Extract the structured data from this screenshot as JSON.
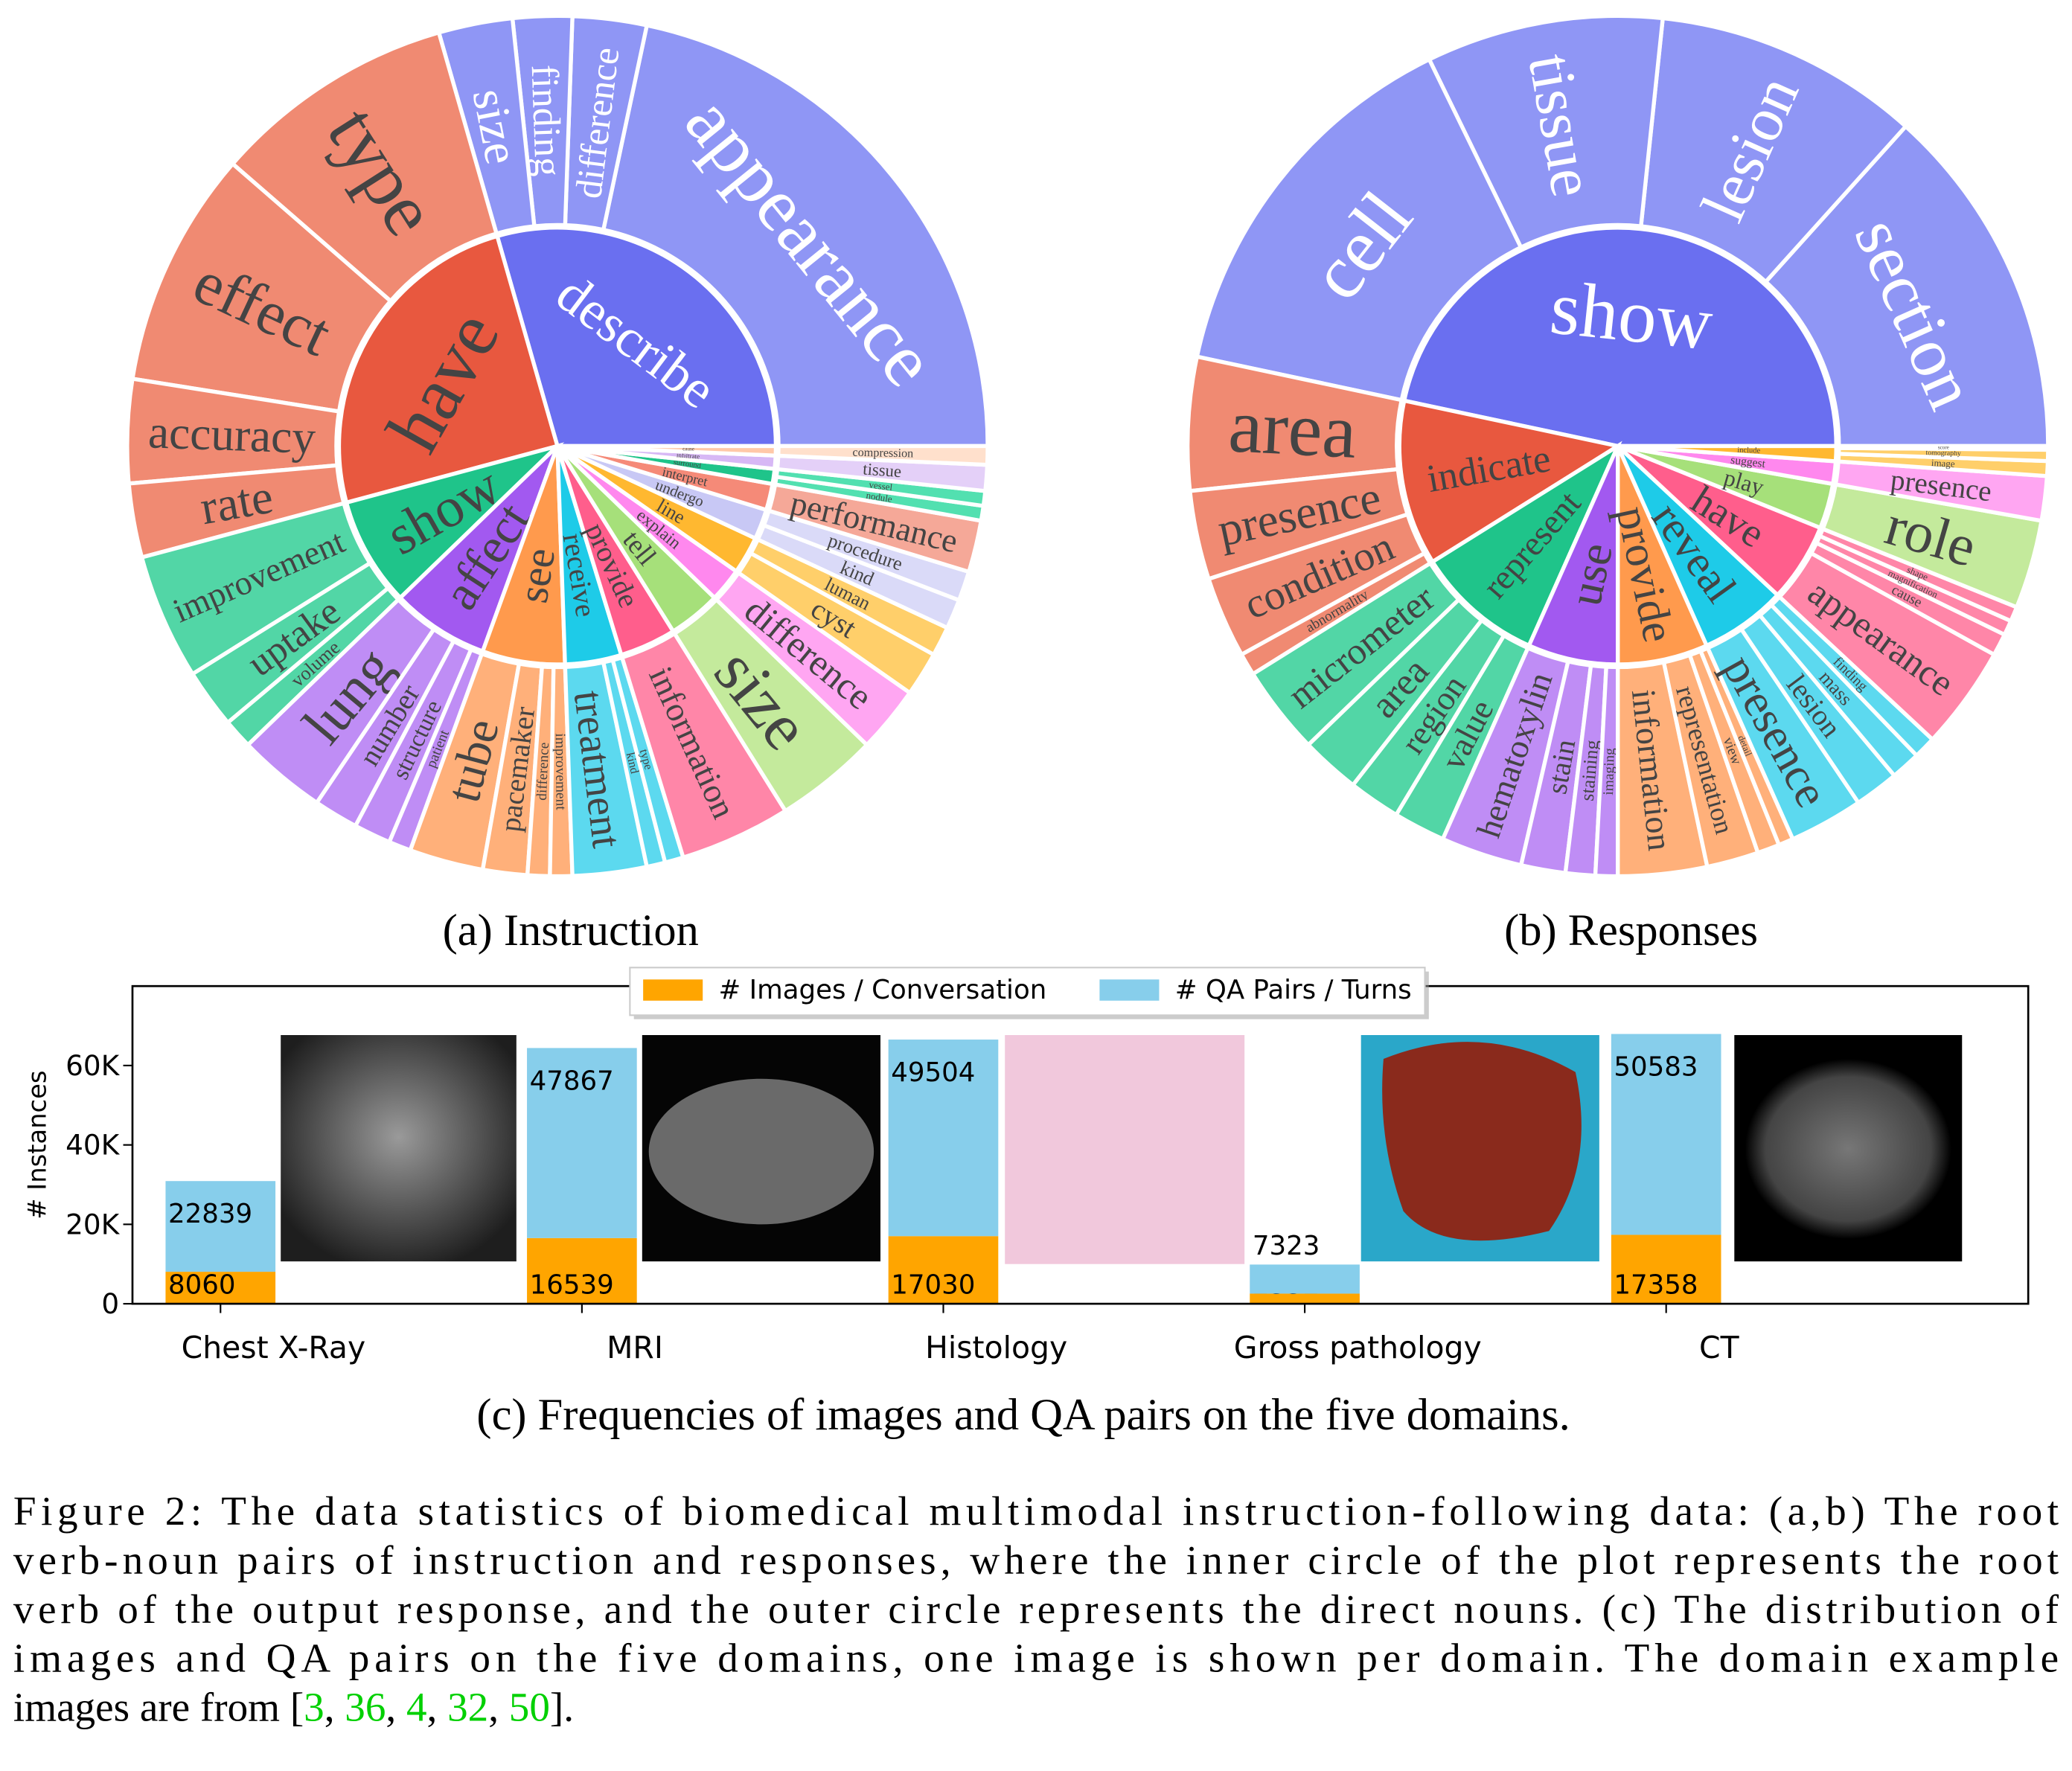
{
  "chart_data": [
    {
      "type": "sunburst",
      "subtitle": "(a) Instruction",
      "groups": [
        {
          "name": "describe",
          "color": "#6a6ff0",
          "outer_color": "#8f96f5",
          "children": [
            {
              "name": "appearance",
              "value": 78
            },
            {
              "name": "difference",
              "value": 10
            },
            {
              "name": "finding",
              "value": 8
            },
            {
              "name": "size",
              "value": 10
            }
          ]
        },
        {
          "name": "have",
          "color": "#e8583f",
          "outer_color": "#f08a72",
          "children": [
            {
              "name": "type",
              "value": 33
            },
            {
              "name": "effect",
              "value": 32
            },
            {
              "name": "accuracy",
              "value": 14
            },
            {
              "name": "rate",
              "value": 10
            }
          ]
        },
        {
          "name": "show",
          "color": "#1fc48a",
          "outer_color": "#52d6a6",
          "children": [
            {
              "name": "improvement",
              "value": 17
            },
            {
              "name": "uptake",
              "value": 8
            },
            {
              "name": "volume",
              "value": 4
            }
          ]
        },
        {
          "name": "affect",
          "color": "#a259f0",
          "outer_color": "#bf8df5",
          "children": [
            {
              "name": "lung",
              "value": 12
            },
            {
              "name": "number",
              "value": 6
            },
            {
              "name": "structure",
              "value": 5
            },
            {
              "name": "patient",
              "value": 3
            }
          ]
        },
        {
          "name": "see",
          "color": "#ff9a4d",
          "outer_color": "#ffb07a",
          "children": [
            {
              "name": "tube",
              "value": 10
            },
            {
              "name": "pacemaker",
              "value": 6
            },
            {
              "name": "difference",
              "value": 3
            },
            {
              "name": "improvement",
              "value": 3
            }
          ]
        },
        {
          "name": "receive",
          "color": "#1ecbe8",
          "outer_color": "#5cd9ef",
          "children": [
            {
              "name": "treatment",
              "value": 10
            },
            {
              "name": "kind",
              "value": 2.5
            },
            {
              "name": "type",
              "value": 2.5
            }
          ]
        },
        {
          "name": "provide",
          "color": "#ff5e8c",
          "outer_color": "#ff86a8",
          "children": [
            {
              "name": "information",
              "value": 15
            }
          ]
        },
        {
          "name": "tell",
          "color": "#a6e07a",
          "outer_color": "#c4ea9c",
          "children": [
            {
              "name": "size",
              "value": 14
            }
          ]
        },
        {
          "name": "explain",
          "color": "#ff88ee",
          "outer_color": "#ffa6f2",
          "children": [
            {
              "name": "difference",
              "value": 9
            }
          ]
        },
        {
          "name": "line",
          "color": "#ffb830",
          "outer_color": "#ffcf6a",
          "children": [
            {
              "name": "cyst",
              "value": 6
            },
            {
              "name": "luman",
              "value": 4
            }
          ]
        },
        {
          "name": "undergo",
          "color": "#c8c8f5",
          "outer_color": "#dadaf8",
          "children": [
            {
              "name": "kind",
              "value": 4
            },
            {
              "name": "procedure",
              "value": 4
            }
          ]
        },
        {
          "name": "interpret",
          "color": "#f58a78",
          "outer_color": "#f5a898",
          "children": [
            {
              "name": "performance",
              "value": 7
            }
          ]
        },
        {
          "name": "surround",
          "color": "#1fc48a",
          "outer_color": "#52e0b0",
          "children": [
            {
              "name": "nodule",
              "value": 2
            },
            {
              "name": "vessel",
              "value": 2
            }
          ]
        },
        {
          "name": "infiltrate",
          "color": "#d7b8f5",
          "outer_color": "#e4d0f8",
          "children": [
            {
              "name": "tissue",
              "value": 3.5
            }
          ]
        },
        {
          "name": "cause",
          "color": "#ffc8a8",
          "outer_color": "#ffe0cc",
          "children": [
            {
              "name": "compression",
              "value": 2.5
            }
          ]
        }
      ]
    },
    {
      "type": "sunburst",
      "subtitle": "(b) Responses",
      "groups": [
        {
          "name": "show",
          "color": "#6a6ff0",
          "outer_color": "#8f96f5",
          "children": [
            {
              "name": "section",
              "value": 48
            },
            {
              "name": "lesion",
              "value": 36
            },
            {
              "name": "tissue",
              "value": 32
            },
            {
              "name": "cell",
              "value": 52
            }
          ]
        },
        {
          "name": "indicate",
          "color": "#e8583f",
          "outer_color": "#f08a72",
          "children": [
            {
              "name": "area",
              "value": 18
            },
            {
              "name": "presence",
              "value": 12
            },
            {
              "name": "condition",
              "value": 11
            },
            {
              "name": "abnormality",
              "value": 3
            }
          ]
        },
        {
          "name": "represent",
          "color": "#1fc48a",
          "outer_color": "#52d6a6",
          "children": [
            {
              "name": "micrometer",
              "value": 12
            },
            {
              "name": "area",
              "value": 8
            },
            {
              "name": "region",
              "value": 7
            },
            {
              "name": "value",
              "value": 7
            }
          ]
        },
        {
          "name": "use",
          "color": "#a259f0",
          "outer_color": "#bf8df5",
          "children": [
            {
              "name": "hematoxylin",
              "value": 11
            },
            {
              "name": "stain",
              "value": 6
            },
            {
              "name": "staining",
              "value": 4
            },
            {
              "name": "imaging",
              "value": 3
            }
          ]
        },
        {
          "name": "provide",
          "color": "#ff9a4d",
          "outer_color": "#ffb07a",
          "children": [
            {
              "name": "information",
              "value": 12
            },
            {
              "name": "representation",
              "value": 7
            },
            {
              "name": "view",
              "value": 3
            },
            {
              "name": "detail",
              "value": 2
            }
          ]
        },
        {
          "name": "reveal",
          "color": "#1ecbe8",
          "outer_color": "#5cd9ef",
          "children": [
            {
              "name": "presence",
              "value": 10
            },
            {
              "name": "lesion",
              "value": 6
            },
            {
              "name": "mass",
              "value": 4
            },
            {
              "name": "finding",
              "value": 3
            }
          ]
        },
        {
          "name": "have",
          "color": "#ff5e8c",
          "outer_color": "#ff86a8",
          "children": [
            {
              "name": "appearance",
              "value": 14
            },
            {
              "name": "cause",
              "value": 3
            },
            {
              "name": "magnification",
              "value": 2
            },
            {
              "name": "shape",
              "value": 2
            }
          ]
        },
        {
          "name": "play",
          "color": "#a6e07a",
          "outer_color": "#c4ea9c",
          "children": [
            {
              "name": "role",
              "value": 12
            }
          ]
        },
        {
          "name": "suggest",
          "color": "#ff88ee",
          "outer_color": "#ffa6f2",
          "children": [
            {
              "name": "presence",
              "value": 6
            }
          ]
        },
        {
          "name": "include",
          "color": "#ffb830",
          "outer_color": "#ffcf6a",
          "children": [
            {
              "name": "image",
              "value": 2
            },
            {
              "name": "tomography",
              "value": 1.5
            },
            {
              "name": "score",
              "value": 0.5
            }
          ]
        }
      ]
    },
    {
      "type": "bar",
      "stacked": true,
      "subtitle": "(c) Frequencies of images and QA pairs on the five domains.",
      "ylabel": "# Instances",
      "legend": "upper center",
      "categories": [
        "Chest X-Ray",
        "MRI",
        "Histology",
        "Gross pathology",
        "CT"
      ],
      "series": [
        {
          "name": "# Images / Conversation",
          "color": "#ffa500",
          "values": [
            8060,
            16539,
            17030,
            2552,
            17358
          ]
        },
        {
          "name": "# QA Pairs / Turns",
          "color": "#87ceeb",
          "values": [
            22839,
            47867,
            49504,
            7323,
            50583
          ]
        }
      ],
      "ylim": [
        0,
        80000
      ],
      "yticks": [
        0,
        {
          "value": 20000,
          "label": "20K"
        },
        {
          "value": 40000,
          "label": "40K"
        },
        {
          "value": 60000,
          "label": "60K"
        }
      ]
    }
  ],
  "figure_caption": {
    "lines": [
      "Figure 2: The data statistics of biomedical multimodal instruction-following data: (a,b) The root",
      "verb-noun pairs of instruction and responses, where the inner circle of the plot represents the root",
      "verb of the output response, and the outer circle represents the direct nouns. (c) The distribution of",
      "images and QA pairs on the five domains, one image is shown per domain. The domain example"
    ],
    "last_line": [
      {
        "text": "images are from ["
      },
      {
        "text": "3",
        "color": "#00d000"
      },
      {
        "text": ", "
      },
      {
        "text": "36",
        "color": "#00d000"
      },
      {
        "text": ", "
      },
      {
        "text": "4",
        "color": "#00d000"
      },
      {
        "text": ", "
      },
      {
        "text": "32",
        "color": "#00d000"
      },
      {
        "text": ", "
      },
      {
        "text": "50",
        "color": "#00d000"
      },
      {
        "text": "]."
      }
    ]
  }
}
